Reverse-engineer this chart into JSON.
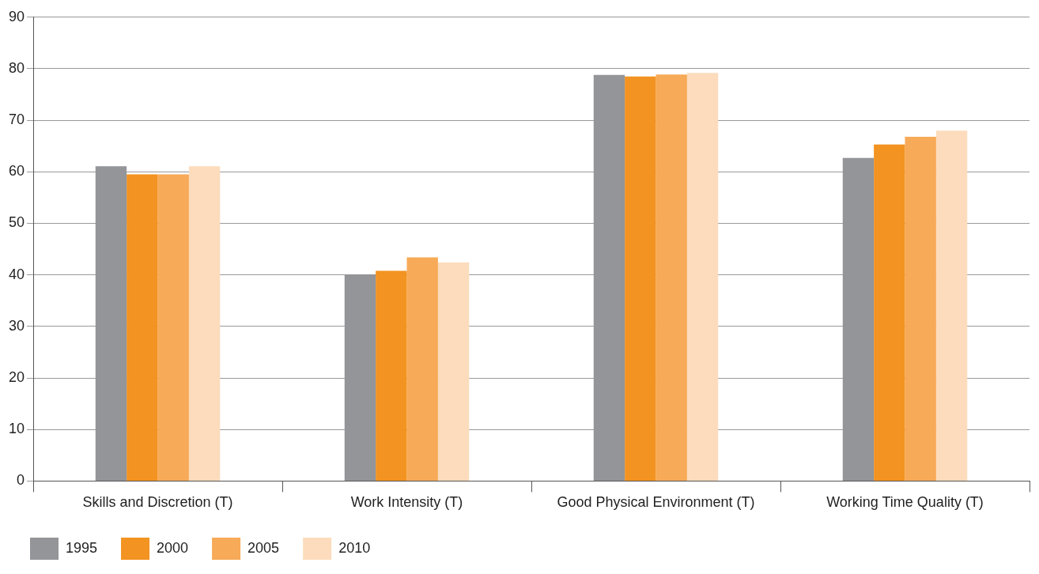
{
  "chart_data": {
    "type": "bar",
    "categories": [
      "Skills and Discretion (T)",
      "Work Intensity (T)",
      "Good Physical Environment (T)",
      "Working Time Quality (T)"
    ],
    "series": [
      {
        "name": "1995",
        "color": "#939598",
        "values": [
          61.1,
          40.1,
          78.8,
          62.7
        ]
      },
      {
        "name": "2000",
        "color": "#f39321",
        "values": [
          59.5,
          40.8,
          78.5,
          65.3
        ]
      },
      {
        "name": "2005",
        "color": "#f7aa57",
        "values": [
          59.5,
          43.4,
          78.9,
          66.8
        ]
      },
      {
        "name": "2010",
        "color": "#fcdcbc",
        "values": [
          61.1,
          42.4,
          79.2,
          68.0
        ]
      }
    ],
    "ylim": [
      0,
      90
    ],
    "yticks": [
      0,
      10,
      20,
      30,
      40,
      50,
      60,
      70,
      80,
      90
    ],
    "grid": "y",
    "legend": "bottom left"
  }
}
